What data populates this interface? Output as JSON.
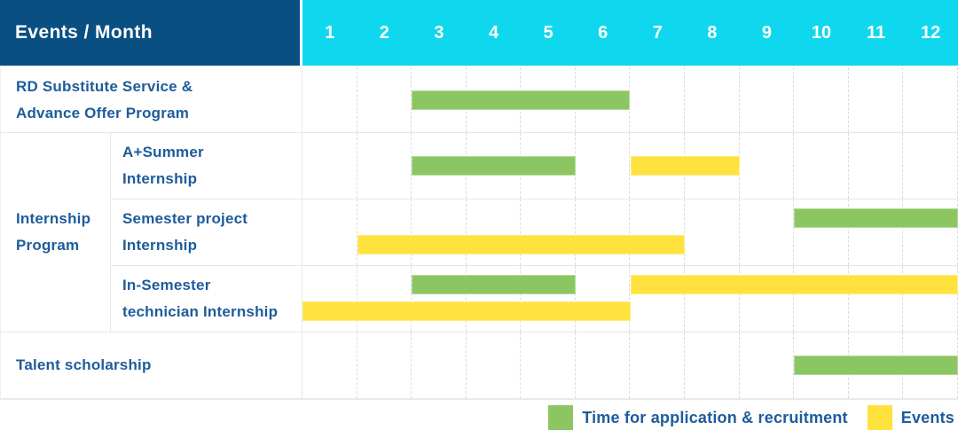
{
  "colors": {
    "header_blue": "#0A4F82",
    "month_cyan": "#0FD8EE",
    "text_blue": "#1D5C9B",
    "bar_green": "#8CC663",
    "bar_yellow": "#FFE23E",
    "grid_line": "#E7E7E7",
    "grid_dash": "#DCDCDC"
  },
  "header": {
    "title": "Events / Month",
    "months": [
      "1",
      "2",
      "3",
      "4",
      "5",
      "6",
      "7",
      "8",
      "9",
      "10",
      "11",
      "12"
    ]
  },
  "groups": [
    {
      "label": "Internship\nProgram"
    }
  ],
  "rows": [
    {
      "label": "RD Substitute Service &\nAdvance Offer Program"
    },
    {
      "label": "A+Summer\nInternship"
    },
    {
      "label": "Semester project\nInternship"
    },
    {
      "label": "In-Semester\ntechnician Internship"
    },
    {
      "label": "Talent scholarship"
    }
  ],
  "legend": [
    {
      "label": "Time for application & recruitment",
      "color": "#8CC663"
    },
    {
      "label": "Events",
      "color": "#FFE23E"
    }
  ],
  "chart_data": {
    "type": "table",
    "title": "Events / Month",
    "x_axis": {
      "label": "Month",
      "ticks": [
        1,
        2,
        3,
        4,
        5,
        6,
        7,
        8,
        9,
        10,
        11,
        12
      ],
      "range": [
        1,
        12
      ]
    },
    "grid": true,
    "legend_position": "bottom-right",
    "series_names": [
      "Time for application & recruitment",
      "Events"
    ],
    "rows": [
      {
        "label": "RD Substitute Service & Advance Offer Program",
        "group": null,
        "bars": [
          {
            "series": "Time for application & recruitment",
            "start_month": 3,
            "end_month": 6,
            "lane": "center"
          }
        ]
      },
      {
        "label": "A+Summer Internship",
        "group": "Internship Program",
        "bars": [
          {
            "series": "Time for application & recruitment",
            "start_month": 3,
            "end_month": 5,
            "lane": "center"
          },
          {
            "series": "Events",
            "start_month": 7,
            "end_month": 8,
            "lane": "center"
          }
        ]
      },
      {
        "label": "Semester project Internship",
        "group": "Internship Program",
        "bars": [
          {
            "series": "Time for application & recruitment",
            "start_month": 10,
            "end_month": 12,
            "lane": "top"
          },
          {
            "series": "Events",
            "start_month": 2,
            "end_month": 7,
            "lane": "bottom"
          }
        ]
      },
      {
        "label": "In-Semester technician Internship",
        "group": "Internship Program",
        "bars": [
          {
            "series": "Time for application & recruitment",
            "start_month": 3,
            "end_month": 5,
            "lane": "top"
          },
          {
            "series": "Events",
            "start_month": 7,
            "end_month": 12,
            "lane": "top"
          },
          {
            "series": "Events",
            "start_month": 1,
            "end_month": 6,
            "lane": "bottom"
          }
        ]
      },
      {
        "label": "Talent scholarship",
        "group": null,
        "bars": [
          {
            "series": "Time for application & recruitment",
            "start_month": 10,
            "end_month": 12,
            "lane": "center"
          }
        ]
      }
    ]
  }
}
